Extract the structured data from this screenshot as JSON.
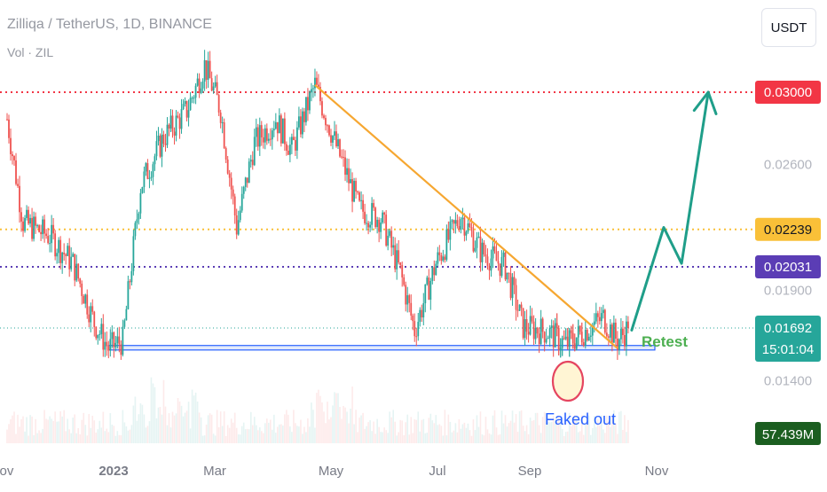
{
  "header": {
    "symbol_title": "Zilliqa / TetherUS, 1D, BINANCE",
    "volume_label": "Vol · ZIL",
    "currency_button": "USDT"
  },
  "colors": {
    "up": "#26a69a",
    "down": "#ef5350",
    "trendline": "#f6a731",
    "arrow": "#1f9e89",
    "red_level": "#f23645",
    "orange_level": "#f9c038",
    "purple_level": "#5b3db5",
    "support_zone": "#2962ff",
    "faked_circle": "#e54560",
    "annotation_blue": "#2962ff",
    "annotation_green": "#4caf50"
  },
  "chart_data": {
    "type": "candlestick",
    "title": "Zilliqa / TetherUS, 1D, BINANCE",
    "series": [
      {
        "name": "ZIL/USDT",
        "points": [
          {
            "x": "2022-11-01",
            "close": 0.0285
          },
          {
            "x": "2022-11-10",
            "close": 0.0228
          },
          {
            "x": "2022-11-25",
            "close": 0.022
          },
          {
            "x": "2022-12-08",
            "close": 0.0205
          },
          {
            "x": "2022-12-20",
            "close": 0.0172
          },
          {
            "x": "2022-12-28",
            "close": 0.0158
          },
          {
            "x": "2023-01-05",
            "close": 0.0162
          },
          {
            "x": "2023-01-15",
            "close": 0.0248
          },
          {
            "x": "2023-01-28",
            "close": 0.0275
          },
          {
            "x": "2023-02-10",
            "close": 0.029
          },
          {
            "x": "2023-02-20",
            "close": 0.0315
          },
          {
            "x": "2023-03-01",
            "close": 0.029
          },
          {
            "x": "2023-03-10",
            "close": 0.0225
          },
          {
            "x": "2023-03-20",
            "close": 0.0272
          },
          {
            "x": "2023-04-01",
            "close": 0.0285
          },
          {
            "x": "2023-04-10",
            "close": 0.0268
          },
          {
            "x": "2023-04-23",
            "close": 0.0304
          },
          {
            "x": "2023-05-05",
            "close": 0.027
          },
          {
            "x": "2023-05-18",
            "close": 0.0235
          },
          {
            "x": "2023-05-30",
            "close": 0.023
          },
          {
            "x": "2023-06-10",
            "close": 0.02
          },
          {
            "x": "2023-06-18",
            "close": 0.0168
          },
          {
            "x": "2023-06-30",
            "close": 0.0205
          },
          {
            "x": "2023-07-14",
            "close": 0.0232
          },
          {
            "x": "2023-07-25",
            "close": 0.0212
          },
          {
            "x": "2023-08-08",
            "close": 0.0203
          },
          {
            "x": "2023-08-18",
            "close": 0.017
          },
          {
            "x": "2023-09-01",
            "close": 0.0167
          },
          {
            "x": "2023-09-11",
            "close": 0.016
          },
          {
            "x": "2023-09-25",
            "close": 0.017
          },
          {
            "x": "2023-10-02",
            "close": 0.0175
          },
          {
            "x": "2023-10-10",
            "close": 0.0162
          },
          {
            "x": "2023-10-16",
            "close": 0.01692
          }
        ]
      }
    ],
    "time_axis": [
      "Nov",
      "2023",
      "Mar",
      "May",
      "Jul",
      "Sep",
      "Nov"
    ],
    "price_axis": [
      "0.02600",
      "0.01900",
      "0.01400"
    ],
    "price_labels": [
      {
        "value": 0.03,
        "label": "0.03000",
        "color": "red"
      },
      {
        "value": 0.02239,
        "label": "0.02239",
        "color": "orange"
      },
      {
        "value": 0.02031,
        "label": "0.02031",
        "color": "purple"
      },
      {
        "value": 0.01692,
        "label": "0.01692",
        "countdown": "15:01:04",
        "color": "teal"
      }
    ],
    "volume_label": "57.439M",
    "levels": [
      {
        "value": 0.03,
        "style": "dotted",
        "color": "red"
      },
      {
        "value": 0.02239,
        "style": "dotted",
        "color": "orange"
      },
      {
        "value": 0.02031,
        "style": "dotted",
        "color": "purple"
      },
      {
        "value": 0.01692,
        "style": "dotted",
        "color": "teal"
      }
    ],
    "support_zone": {
      "from": "2022-12-28",
      "to": "2023-10-31",
      "low": 0.0157,
      "high": 0.01595
    },
    "trendline": {
      "from": {
        "x": "2023-04-23",
        "y": 0.0304
      },
      "to": {
        "x": "2023-10-10",
        "y": 0.0158
      }
    },
    "projection": [
      {
        "x": "2023-10-18",
        "y": 0.0168
      },
      {
        "x": "2023-11-05",
        "y": 0.0225
      },
      {
        "x": "2023-11-15",
        "y": 0.0205
      },
      {
        "x": "2023-11-30",
        "y": 0.03
      }
    ],
    "annotations": [
      {
        "text": "Faked out",
        "color": "blue"
      },
      {
        "text": "Retest",
        "color": "green"
      }
    ]
  }
}
